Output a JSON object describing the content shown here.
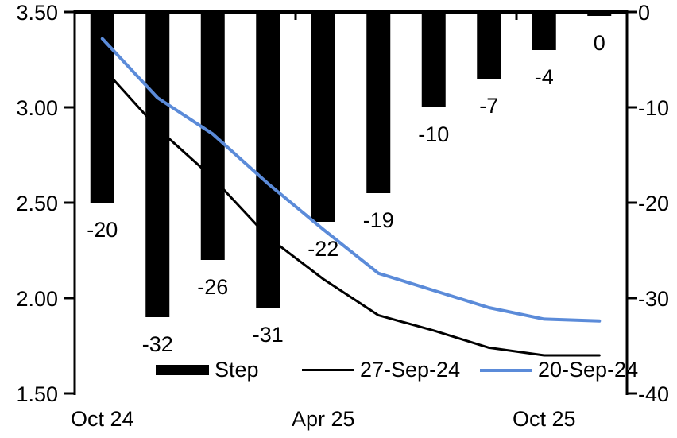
{
  "chart_data": {
    "type": "bar+line combo",
    "categories_count": 10,
    "x_tick_labels": [
      {
        "index": 0,
        "label": "Oct 24"
      },
      {
        "index": 4,
        "label": "Apr 25"
      },
      {
        "index": 8,
        "label": "Oct 25"
      }
    ],
    "bar_series": {
      "name": "Step",
      "axis": "right",
      "unit": "bp",
      "color": "#000000",
      "values": [
        -20,
        -32,
        -26,
        -31,
        -22,
        -19,
        -10,
        -7,
        -4,
        0
      ],
      "data_labels": [
        "-20",
        "-32",
        "-26",
        "-31",
        "-22",
        "-19",
        "-10",
        "-7",
        "-4",
        "0"
      ]
    },
    "line_series": [
      {
        "name": "27-Sep-24",
        "axis": "left",
        "color": "#000000",
        "width": 3,
        "values": [
          3.21,
          2.89,
          2.63,
          2.32,
          2.1,
          1.91,
          1.83,
          1.74,
          1.7,
          1.7
        ]
      },
      {
        "name": "20-Sep-24",
        "axis": "left",
        "color": "#5B8BD9",
        "width": 4,
        "values": [
          3.36,
          3.05,
          2.86,
          2.6,
          2.36,
          2.13,
          2.04,
          1.95,
          1.89,
          1.88
        ]
      }
    ],
    "left_axis": {
      "min": 1.5,
      "max": 3.5,
      "tick_step": 0.5,
      "tick_labels": [
        "3.50",
        "3.00",
        "2.50",
        "2.00",
        "1.50"
      ]
    },
    "right_axis": {
      "min": -40,
      "max": 0,
      "tick_step": 10,
      "tick_labels": [
        "0",
        "-10",
        "-20",
        "-30",
        "-40"
      ]
    },
    "grid": "off",
    "legend": {
      "position": "bottom",
      "entries": [
        {
          "label": "Step",
          "type": "bar",
          "color": "#000000"
        },
        {
          "label": "27-Sep-24",
          "type": "line",
          "color": "#000000"
        },
        {
          "label": "20-Sep-24",
          "type": "line",
          "color": "#5B8BD9"
        }
      ]
    }
  }
}
